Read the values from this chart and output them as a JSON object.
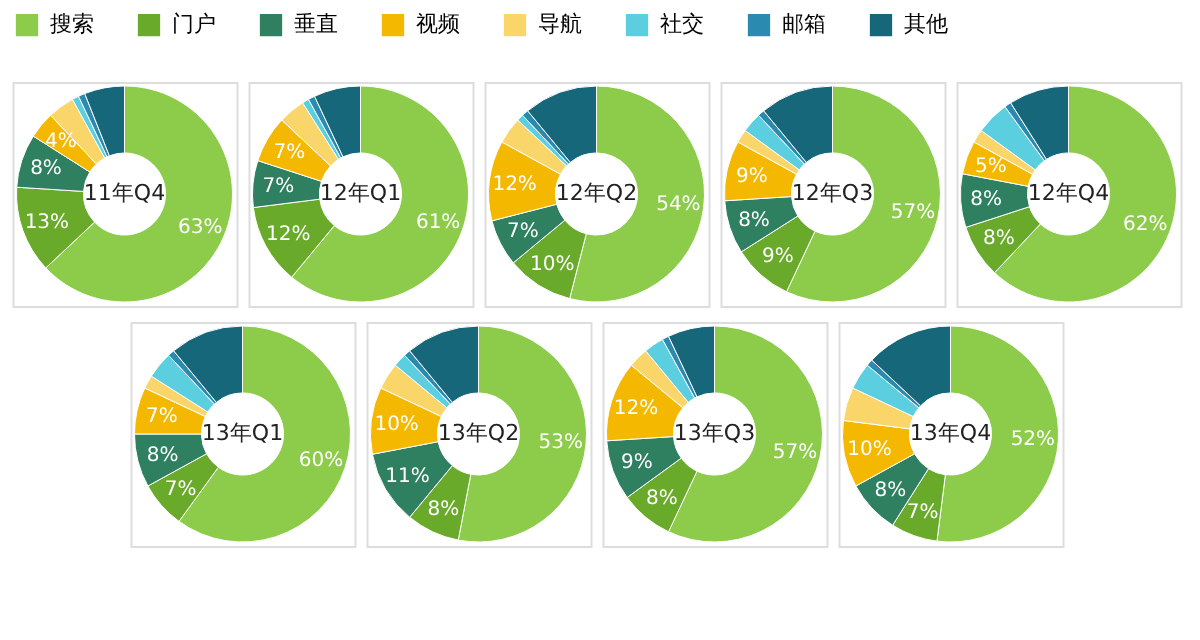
{
  "chart_data": [
    {
      "type": "donut",
      "title": "11年Q4",
      "legend": "top",
      "categories": [
        "搜索",
        "门户",
        "垂直",
        "视频",
        "导航",
        "社交",
        "邮箱",
        "其他"
      ],
      "colors": [
        "#8dcc4a",
        "#6aaa2a",
        "#2e8060",
        "#f5b800",
        "#fad66a",
        "#5bcfe0",
        "#2a8ab0",
        "#17677a"
      ],
      "values": [
        63,
        13,
        8,
        4,
        4,
        1,
        1,
        6
      ],
      "value_labels": [
        "63%",
        "13%",
        "8%",
        "4%",
        null,
        null,
        null,
        null
      ]
    },
    {
      "type": "donut",
      "title": "12年Q1",
      "categories": [
        null,
        null,
        null,
        null,
        null,
        null,
        null,
        null
      ],
      "colors": [
        "#8dcc4a",
        "#6aaa2a",
        "#2e8060",
        "#f5b800",
        "#fad66a",
        "#5bcfe0",
        "#2a8ab0",
        "#17677a"
      ],
      "values": [
        61,
        12,
        7,
        7,
        4,
        1,
        1,
        7
      ],
      "value_labels": [
        "61%",
        "12%",
        "7%",
        "7%",
        null,
        null,
        null,
        null
      ]
    },
    {
      "type": "donut",
      "title": "12年Q2",
      "categories": [
        null,
        null,
        null,
        null,
        null,
        null,
        null,
        null
      ],
      "colors": [
        "#8dcc4a",
        "#6aaa2a",
        "#2e8060",
        "#f5b800",
        "#fad66a",
        "#5bcfe0",
        "#2a8ab0",
        "#17677a"
      ],
      "values": [
        54,
        10,
        7,
        12,
        4,
        1,
        1,
        11
      ],
      "value_labels": [
        "54%",
        "10%",
        "7%",
        "12%",
        null,
        null,
        null,
        null
      ]
    },
    {
      "type": "donut",
      "title": "12年Q3",
      "categories": [
        null,
        null,
        null,
        null,
        null,
        null,
        null,
        null
      ],
      "colors": [
        "#8dcc4a",
        "#6aaa2a",
        "#2e8060",
        "#f5b800",
        "#fad66a",
        "#5bcfe0",
        "#2a8ab0",
        "#17677a"
      ],
      "values": [
        57,
        9,
        8,
        9,
        2,
        3,
        1,
        11
      ],
      "value_labels": [
        "57%",
        "9%",
        "8%",
        "9%",
        null,
        null,
        null,
        null
      ]
    },
    {
      "type": "donut",
      "title": "12年Q4",
      "categories": [
        null,
        null,
        null,
        null,
        null,
        null,
        null,
        null
      ],
      "colors": [
        "#8dcc4a",
        "#6aaa2a",
        "#2e8060",
        "#f5b800",
        "#fad66a",
        "#5bcfe0",
        "#2a8ab0",
        "#17677a"
      ],
      "values": [
        62,
        8,
        8,
        5,
        2,
        5,
        1,
        9
      ],
      "value_labels": [
        "62%",
        "8%",
        "8%",
        "5%",
        null,
        null,
        null,
        null
      ]
    },
    {
      "type": "donut",
      "title": "13年Q1",
      "categories": [
        null,
        null,
        null,
        null,
        null,
        null,
        null,
        null
      ],
      "colors": [
        "#8dcc4a",
        "#6aaa2a",
        "#2e8060",
        "#f5b800",
        "#fad66a",
        "#5bcfe0",
        "#2a8ab0",
        "#17677a"
      ],
      "values": [
        60,
        7,
        8,
        7,
        2,
        4,
        1,
        11
      ],
      "value_labels": [
        "60%",
        "7%",
        "8%",
        "7%",
        null,
        null,
        null,
        null
      ]
    },
    {
      "type": "donut",
      "title": "13年Q2",
      "categories": [
        null,
        null,
        null,
        null,
        null,
        null,
        null,
        null
      ],
      "colors": [
        "#8dcc4a",
        "#6aaa2a",
        "#2e8060",
        "#f5b800",
        "#fad66a",
        "#5bcfe0",
        "#2a8ab0",
        "#17677a"
      ],
      "values": [
        53,
        8,
        11,
        10,
        4,
        2,
        1,
        11
      ],
      "value_labels": [
        "53%",
        "8%",
        "11%",
        "10%",
        null,
        null,
        null,
        null
      ]
    },
    {
      "type": "donut",
      "title": "13年Q3",
      "categories": [
        null,
        null,
        null,
        null,
        null,
        null,
        null,
        null
      ],
      "colors": [
        "#8dcc4a",
        "#6aaa2a",
        "#2e8060",
        "#f5b800",
        "#fad66a",
        "#5bcfe0",
        "#2a8ab0",
        "#17677a"
      ],
      "values": [
        57,
        8,
        9,
        12,
        3,
        3,
        1,
        7
      ],
      "value_labels": [
        "57%",
        "8%",
        "9%",
        "12%",
        null,
        null,
        null,
        null
      ]
    },
    {
      "type": "donut",
      "title": "13年Q4",
      "categories": [
        null,
        null,
        null,
        null,
        null,
        null,
        null,
        null
      ],
      "colors": [
        "#8dcc4a",
        "#6aaa2a",
        "#2e8060",
        "#f5b800",
        "#fad66a",
        "#5bcfe0",
        "#2a8ab0",
        "#17677a"
      ],
      "values": [
        52,
        7,
        8,
        10,
        5,
        4,
        1,
        13
      ],
      "value_labels": [
        "52%",
        "7%",
        "8%",
        "10%",
        null,
        null,
        null,
        null
      ]
    }
  ]
}
